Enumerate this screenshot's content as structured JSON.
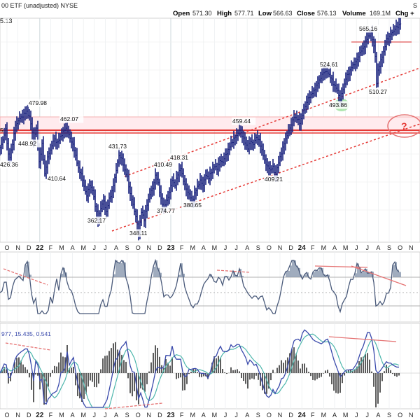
{
  "header": {
    "title": "00 ETF (unadjusted) NYSE",
    "left_value": "5.13",
    "open_label": "Open",
    "open": "571.30",
    "high_label": "High",
    "high": "577.71",
    "low_label": "Low",
    "low": "566.63",
    "close_label": "Close",
    "close": "576.13",
    "volume_label": "Volume",
    "volume": "169.1M",
    "chg_label": "Chg +",
    "corner": "S"
  },
  "chart_data": {
    "type": "bar",
    "subtype": "ohlc",
    "series_color": "#1a237e",
    "x_axis": {
      "ticks": [
        "O",
        "N",
        "D",
        "22",
        "F",
        "M",
        "A",
        "M",
        "J",
        "J",
        "A",
        "S",
        "O",
        "N",
        "D",
        "23",
        "F",
        "M",
        "A",
        "M",
        "J",
        "J",
        "A",
        "S",
        "O",
        "N",
        "D",
        "24",
        "F",
        "M",
        "A",
        "M",
        "J",
        "J",
        "A",
        "S",
        "O",
        "N"
      ],
      "year_ticks": [
        "22",
        "23",
        "24"
      ]
    },
    "price_range": [
      336,
      590
    ],
    "price_path": [
      [
        0,
        440
      ],
      [
        4,
        449
      ],
      [
        8,
        460
      ],
      [
        13,
        426
      ],
      [
        18,
        445
      ],
      [
        22,
        465
      ],
      [
        28,
        472
      ],
      [
        33,
        476
      ],
      [
        38,
        480
      ],
      [
        43,
        472
      ],
      [
        48,
        448
      ],
      [
        52,
        462
      ],
      [
        56,
        424
      ],
      [
        60,
        445
      ],
      [
        64,
        411
      ],
      [
        68,
        430
      ],
      [
        72,
        438
      ],
      [
        77,
        450
      ],
      [
        82,
        446
      ],
      [
        88,
        455
      ],
      [
        94,
        462
      ],
      [
        98,
        454
      ],
      [
        103,
        446
      ],
      [
        108,
        432
      ],
      [
        112,
        417
      ],
      [
        116,
        412
      ],
      [
        120,
        398
      ],
      [
        124,
        388
      ],
      [
        128,
        400
      ],
      [
        132,
        394
      ],
      [
        136,
        378
      ],
      [
        140,
        362
      ],
      [
        144,
        375
      ],
      [
        148,
        382
      ],
      [
        152,
        370
      ],
      [
        156,
        385
      ],
      [
        160,
        392
      ],
      [
        165,
        412
      ],
      [
        170,
        432
      ],
      [
        174,
        428
      ],
      [
        178,
        416
      ],
      [
        182,
        408
      ],
      [
        186,
        390
      ],
      [
        190,
        378
      ],
      [
        194,
        365
      ],
      [
        198,
        348
      ],
      [
        202,
        370
      ],
      [
        206,
        362
      ],
      [
        210,
        378
      ],
      [
        214,
        390
      ],
      [
        218,
        396
      ],
      [
        222,
        410
      ],
      [
        226,
        402
      ],
      [
        230,
        384
      ],
      [
        234,
        375
      ],
      [
        238,
        382
      ],
      [
        242,
        392
      ],
      [
        246,
        405
      ],
      [
        250,
        400
      ],
      [
        254,
        412
      ],
      [
        258,
        418
      ],
      [
        262,
        405
      ],
      [
        266,
        395
      ],
      [
        270,
        390
      ],
      [
        274,
        381
      ],
      [
        278,
        390
      ],
      [
        282,
        398
      ],
      [
        286,
        404
      ],
      [
        290,
        400
      ],
      [
        294,
        410
      ],
      [
        298,
        408
      ],
      [
        302,
        414
      ],
      [
        306,
        420
      ],
      [
        310,
        418
      ],
      [
        314,
        426
      ],
      [
        318,
        425
      ],
      [
        322,
        432
      ],
      [
        326,
        438
      ],
      [
        330,
        445
      ],
      [
        334,
        450
      ],
      [
        338,
        454
      ],
      [
        342,
        459
      ],
      [
        346,
        454
      ],
      [
        350,
        446
      ],
      [
        354,
        440
      ],
      [
        358,
        448
      ],
      [
        362,
        444
      ],
      [
        366,
        452
      ],
      [
        370,
        448
      ],
      [
        374,
        438
      ],
      [
        378,
        426
      ],
      [
        382,
        420
      ],
      [
        386,
        416
      ],
      [
        390,
        420
      ],
      [
        393,
        409
      ],
      [
        396,
        418
      ],
      [
        400,
        430
      ],
      [
        404,
        440
      ],
      [
        408,
        450
      ],
      [
        412,
        458
      ],
      [
        416,
        466
      ],
      [
        420,
        474
      ],
      [
        424,
        472
      ],
      [
        428,
        468
      ],
      [
        432,
        476
      ],
      [
        436,
        486
      ],
      [
        440,
        494
      ],
      [
        444,
        498
      ],
      [
        448,
        502
      ],
      [
        452,
        508
      ],
      [
        456,
        514
      ],
      [
        460,
        520
      ],
      [
        464,
        524
      ],
      [
        468,
        522
      ],
      [
        472,
        518
      ],
      [
        476,
        510
      ],
      [
        480,
        506
      ],
      [
        484,
        498
      ],
      [
        486,
        494
      ],
      [
        490,
        504
      ],
      [
        494,
        516
      ],
      [
        498,
        522
      ],
      [
        502,
        528
      ],
      [
        506,
        532
      ],
      [
        510,
        536
      ],
      [
        514,
        544
      ],
      [
        518,
        548
      ],
      [
        522,
        556
      ],
      [
        526,
        562
      ],
      [
        530,
        565
      ],
      [
        534,
        552
      ],
      [
        536,
        540
      ],
      [
        538,
        510
      ],
      [
        540,
        525
      ],
      [
        544,
        535
      ],
      [
        548,
        545
      ],
      [
        552,
        558
      ],
      [
        556,
        562
      ],
      [
        560,
        566
      ],
      [
        564,
        570
      ],
      [
        568,
        573
      ],
      [
        572,
        576
      ]
    ],
    "annotations": [
      {
        "text": "479.98",
        "value": 479.98
      },
      {
        "text": "448.92",
        "value": 448.92
      },
      {
        "text": "426.36",
        "value": 426.36
      },
      {
        "text": "462.07",
        "value": 462.07
      },
      {
        "text": "410.64",
        "value": 410.64
      },
      {
        "text": "362.17",
        "value": 362.17
      },
      {
        "text": "431.73",
        "value": 431.73
      },
      {
        "text": "410.49",
        "value": 410.49
      },
      {
        "text": "418.31",
        "value": 418.31
      },
      {
        "text": "348.11",
        "value": 348.11
      },
      {
        "text": "374.77",
        "value": 374.77
      },
      {
        "text": "380.65",
        "value": 380.65
      },
      {
        "text": "459.44",
        "value": 459.44
      },
      {
        "text": "409.21",
        "value": 409.21
      },
      {
        "text": "524.61",
        "value": 524.61
      },
      {
        "text": "493.86",
        "value": 493.86
      },
      {
        "text": "565.16",
        "value": 565.16
      },
      {
        "text": "510.27",
        "value": 510.27
      }
    ],
    "question_mark": "?",
    "indicator2_label": "977, 15.435, 0.541",
    "left_axis_labels": [
      "5",
      "5"
    ],
    "colors": {
      "resistance": "#e53935",
      "support_dotted": "#e53935",
      "highlight": "#7cd67c",
      "band": "#ffcdd2",
      "rsi_fill": "#8090a8",
      "macd_line": "#3949ab",
      "signal_line": "#4db6ac",
      "hist": "#333333"
    }
  }
}
